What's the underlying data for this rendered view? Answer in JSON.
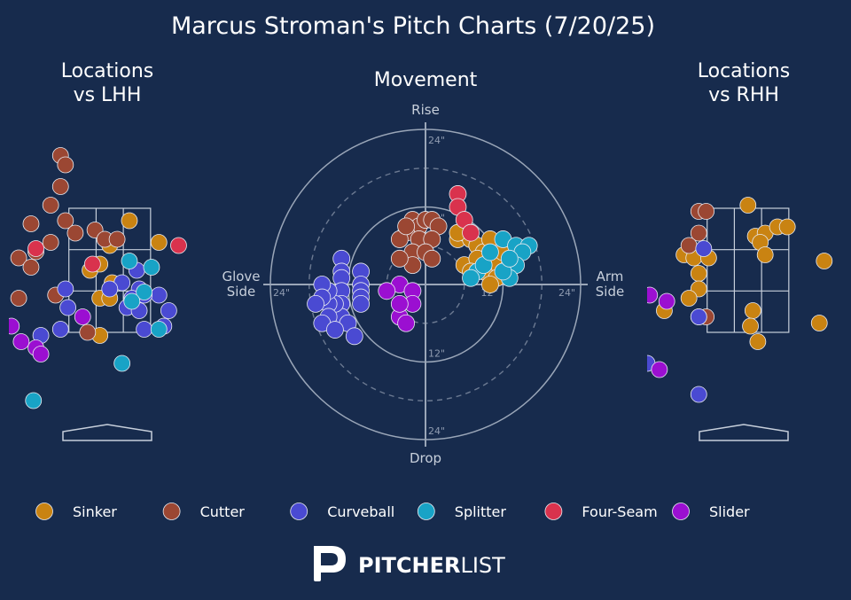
{
  "title": "Marcus Stroman's Pitch Charts (7/20/25)",
  "colors": {
    "background": "#172b4d",
    "Sinker": "#c98312",
    "Cutter": "#9b4733",
    "Curveball": "#4a4ad2",
    "Splitter": "#18a3c6",
    "Four-Seam": "#d9324d",
    "Slider": "#9b0fd1"
  },
  "legend": [
    "Sinker",
    "Cutter",
    "Curveball",
    "Splitter",
    "Four-Seam",
    "Slider"
  ],
  "brand": {
    "p": "PITCHER",
    "l": "LIST"
  },
  "chart_data": [
    {
      "type": "scatter",
      "id": "lhh",
      "title_lines": [
        "Locations",
        "vs LHH"
      ],
      "xlim": [
        -2.05,
        1.95
      ],
      "ylim": [
        -0.5,
        5.0
      ],
      "zone": {
        "x": [
          -0.83,
          0.83
        ],
        "y": [
          1.5,
          3.5
        ]
      },
      "series": [
        {
          "name": "Sinker",
          "points": [
            [
              -0.2,
              2.05
            ],
            [
              0.0,
              2.05
            ],
            [
              0.05,
              2.3
            ],
            [
              -0.4,
              2.5
            ],
            [
              -0.2,
              2.6
            ],
            [
              0.0,
              2.9
            ],
            [
              0.4,
              3.3
            ],
            [
              1.0,
              2.95
            ],
            [
              -0.2,
              1.45
            ]
          ]
        },
        {
          "name": "Cutter",
          "points": [
            [
              -1.0,
              4.35
            ],
            [
              -0.9,
              4.2
            ],
            [
              -1.0,
              3.85
            ],
            [
              -1.2,
              3.55
            ],
            [
              -1.6,
              3.25
            ],
            [
              -0.9,
              3.3
            ],
            [
              -0.7,
              3.1
            ],
            [
              -0.3,
              3.15
            ],
            [
              -0.1,
              3.0
            ],
            [
              0.15,
              3.0
            ],
            [
              -1.2,
              2.95
            ],
            [
              -1.5,
              2.8
            ],
            [
              -1.85,
              2.7
            ],
            [
              -1.6,
              2.55
            ],
            [
              -1.85,
              2.05
            ],
            [
              -1.1,
              2.1
            ],
            [
              -0.45,
              1.5
            ]
          ]
        },
        {
          "name": "Curveball",
          "points": [
            [
              0.25,
              2.3
            ],
            [
              0.6,
              2.2
            ],
            [
              1.0,
              2.1
            ],
            [
              0.7,
              2.1
            ],
            [
              0.35,
              1.9
            ],
            [
              0.6,
              1.85
            ],
            [
              0.0,
              2.2
            ],
            [
              -0.9,
              2.2
            ],
            [
              -0.85,
              1.9
            ],
            [
              1.2,
              1.85
            ],
            [
              1.1,
              1.6
            ],
            [
              0.7,
              1.55
            ],
            [
              -1.0,
              1.55
            ],
            [
              -1.4,
              1.45
            ],
            [
              0.55,
              2.5
            ],
            [
              0.45,
              2.05
            ]
          ]
        },
        {
          "name": "Splitter",
          "points": [
            [
              0.4,
              2.65
            ],
            [
              0.85,
              2.55
            ],
            [
              0.7,
              2.15
            ],
            [
              0.45,
              2.0
            ],
            [
              1.0,
              1.55
            ],
            [
              0.25,
              1.0
            ],
            [
              -1.55,
              0.4
            ]
          ]
        },
        {
          "name": "Four-Seam",
          "points": [
            [
              -1.5,
              2.85
            ],
            [
              -0.35,
              2.6
            ],
            [
              1.4,
              2.9
            ]
          ]
        },
        {
          "name": "Slider",
          "points": [
            [
              -2.0,
              1.6
            ],
            [
              -1.8,
              1.35
            ],
            [
              -1.5,
              1.25
            ],
            [
              -1.4,
              1.15
            ],
            [
              -0.55,
              1.75
            ]
          ]
        }
      ]
    },
    {
      "type": "scatter",
      "id": "movement",
      "title": "Movement",
      "axis_labels": {
        "top": "Rise",
        "bottom": "Drop",
        "left_lines": [
          "Glove",
          "Side"
        ],
        "right_lines": [
          "Arm",
          "Side"
        ]
      },
      "ring_labels": [
        "24\"",
        "12\""
      ],
      "xlim": [
        -24,
        24
      ],
      "ylim": [
        -24,
        24
      ],
      "series": [
        {
          "name": "Sinker",
          "points": [
            [
              5,
              7
            ],
            [
              6,
              8
            ],
            [
              7,
              7
            ],
            [
              8,
              6
            ],
            [
              9,
              5
            ],
            [
              10,
              4
            ],
            [
              11,
              3
            ],
            [
              8,
              3
            ],
            [
              6,
              3
            ],
            [
              9,
              2
            ],
            [
              11,
              1
            ],
            [
              10,
              0
            ],
            [
              8,
              4
            ],
            [
              10,
              7
            ],
            [
              12,
              5
            ],
            [
              13,
              3
            ],
            [
              7,
              2
            ],
            [
              5,
              8
            ]
          ]
        },
        {
          "name": "Cutter",
          "points": [
            [
              -2,
              10
            ],
            [
              -1,
              9
            ],
            [
              0,
              10
            ],
            [
              1,
              10
            ],
            [
              2,
              9
            ],
            [
              -3,
              8
            ],
            [
              -1,
              7
            ],
            [
              1,
              7
            ],
            [
              -2,
              5
            ],
            [
              0,
              5
            ],
            [
              1,
              4
            ],
            [
              -2,
              3
            ],
            [
              -4,
              7
            ],
            [
              -4,
              4
            ],
            [
              -3,
              9
            ]
          ]
        },
        {
          "name": "Curveball",
          "points": [
            [
              -13,
              4
            ],
            [
              -13,
              2
            ],
            [
              -13,
              1
            ],
            [
              -10,
              2
            ],
            [
              -10,
              0
            ],
            [
              -10,
              -1
            ],
            [
              -10,
              -2
            ],
            [
              -10,
              -3
            ],
            [
              -13,
              -1
            ],
            [
              -13,
              -3
            ],
            [
              -13,
              -5
            ],
            [
              -12,
              -6
            ],
            [
              -14,
              -3
            ],
            [
              -15,
              -3
            ],
            [
              -15,
              -1
            ],
            [
              -16,
              0
            ],
            [
              -16,
              -2
            ],
            [
              -17,
              -3
            ],
            [
              -15,
              -5
            ],
            [
              -16,
              -6
            ],
            [
              -14,
              -7
            ],
            [
              -11,
              -8
            ]
          ]
        },
        {
          "name": "Splitter",
          "points": [
            [
              12,
              7
            ],
            [
              14,
              6
            ],
            [
              16,
              6
            ],
            [
              15,
              5
            ],
            [
              14,
              3
            ],
            [
              13,
              1
            ],
            [
              12,
              2
            ],
            [
              8,
              2
            ],
            [
              7,
              1
            ],
            [
              9,
              3
            ],
            [
              10,
              5
            ],
            [
              13,
              4
            ]
          ]
        },
        {
          "name": "Four-Seam",
          "points": [
            [
              5,
              14
            ],
            [
              5,
              12
            ],
            [
              6,
              10
            ],
            [
              7,
              8
            ]
          ]
        },
        {
          "name": "Slider",
          "points": [
            [
              -4,
              0
            ],
            [
              -2,
              -1
            ],
            [
              -6,
              -1
            ],
            [
              -2,
              -3
            ],
            [
              -4,
              -5
            ],
            [
              -3,
              -6
            ],
            [
              -4,
              -3
            ]
          ]
        }
      ]
    },
    {
      "type": "scatter",
      "id": "rhh",
      "title_lines": [
        "Locations",
        "vs RHH"
      ],
      "xlim": [
        -2.05,
        1.95
      ],
      "ylim": [
        -0.5,
        5.0
      ],
      "zone": {
        "x": [
          -0.83,
          0.83
        ],
        "y": [
          1.5,
          3.5
        ]
      },
      "series": [
        {
          "name": "Sinker",
          "points": [
            [
              0.0,
              3.55
            ],
            [
              0.15,
              3.05
            ],
            [
              0.35,
              3.1
            ],
            [
              0.6,
              3.2
            ],
            [
              0.8,
              3.2
            ],
            [
              0.25,
              2.95
            ],
            [
              0.35,
              2.75
            ],
            [
              -1.3,
              2.75
            ],
            [
              -1.1,
              2.7
            ],
            [
              -0.8,
              2.7
            ],
            [
              -1.0,
              2.45
            ],
            [
              -1.0,
              2.2
            ],
            [
              -1.2,
              2.05
            ],
            [
              -1.7,
              1.85
            ],
            [
              0.1,
              1.85
            ],
            [
              0.05,
              1.6
            ],
            [
              0.2,
              1.35
            ],
            [
              1.55,
              2.65
            ],
            [
              1.45,
              1.65
            ]
          ]
        },
        {
          "name": "Cutter",
          "points": [
            [
              -1.0,
              3.45
            ],
            [
              -0.85,
              3.45
            ],
            [
              -1.0,
              3.1
            ],
            [
              -1.2,
              2.9
            ],
            [
              -0.85,
              1.75
            ],
            [
              -1.0,
              1.75
            ]
          ]
        },
        {
          "name": "Curveball",
          "points": [
            [
              -0.9,
              2.85
            ],
            [
              -1.0,
              1.75
            ],
            [
              -2.05,
              1.0
            ],
            [
              -1.0,
              0.5
            ]
          ]
        },
        {
          "name": "Splitter",
          "points": []
        },
        {
          "name": "Four-Seam",
          "points": []
        },
        {
          "name": "Slider",
          "points": [
            [
              -2.0,
              2.1
            ],
            [
              -1.65,
              2.0
            ],
            [
              -1.8,
              0.9
            ]
          ]
        }
      ]
    }
  ]
}
